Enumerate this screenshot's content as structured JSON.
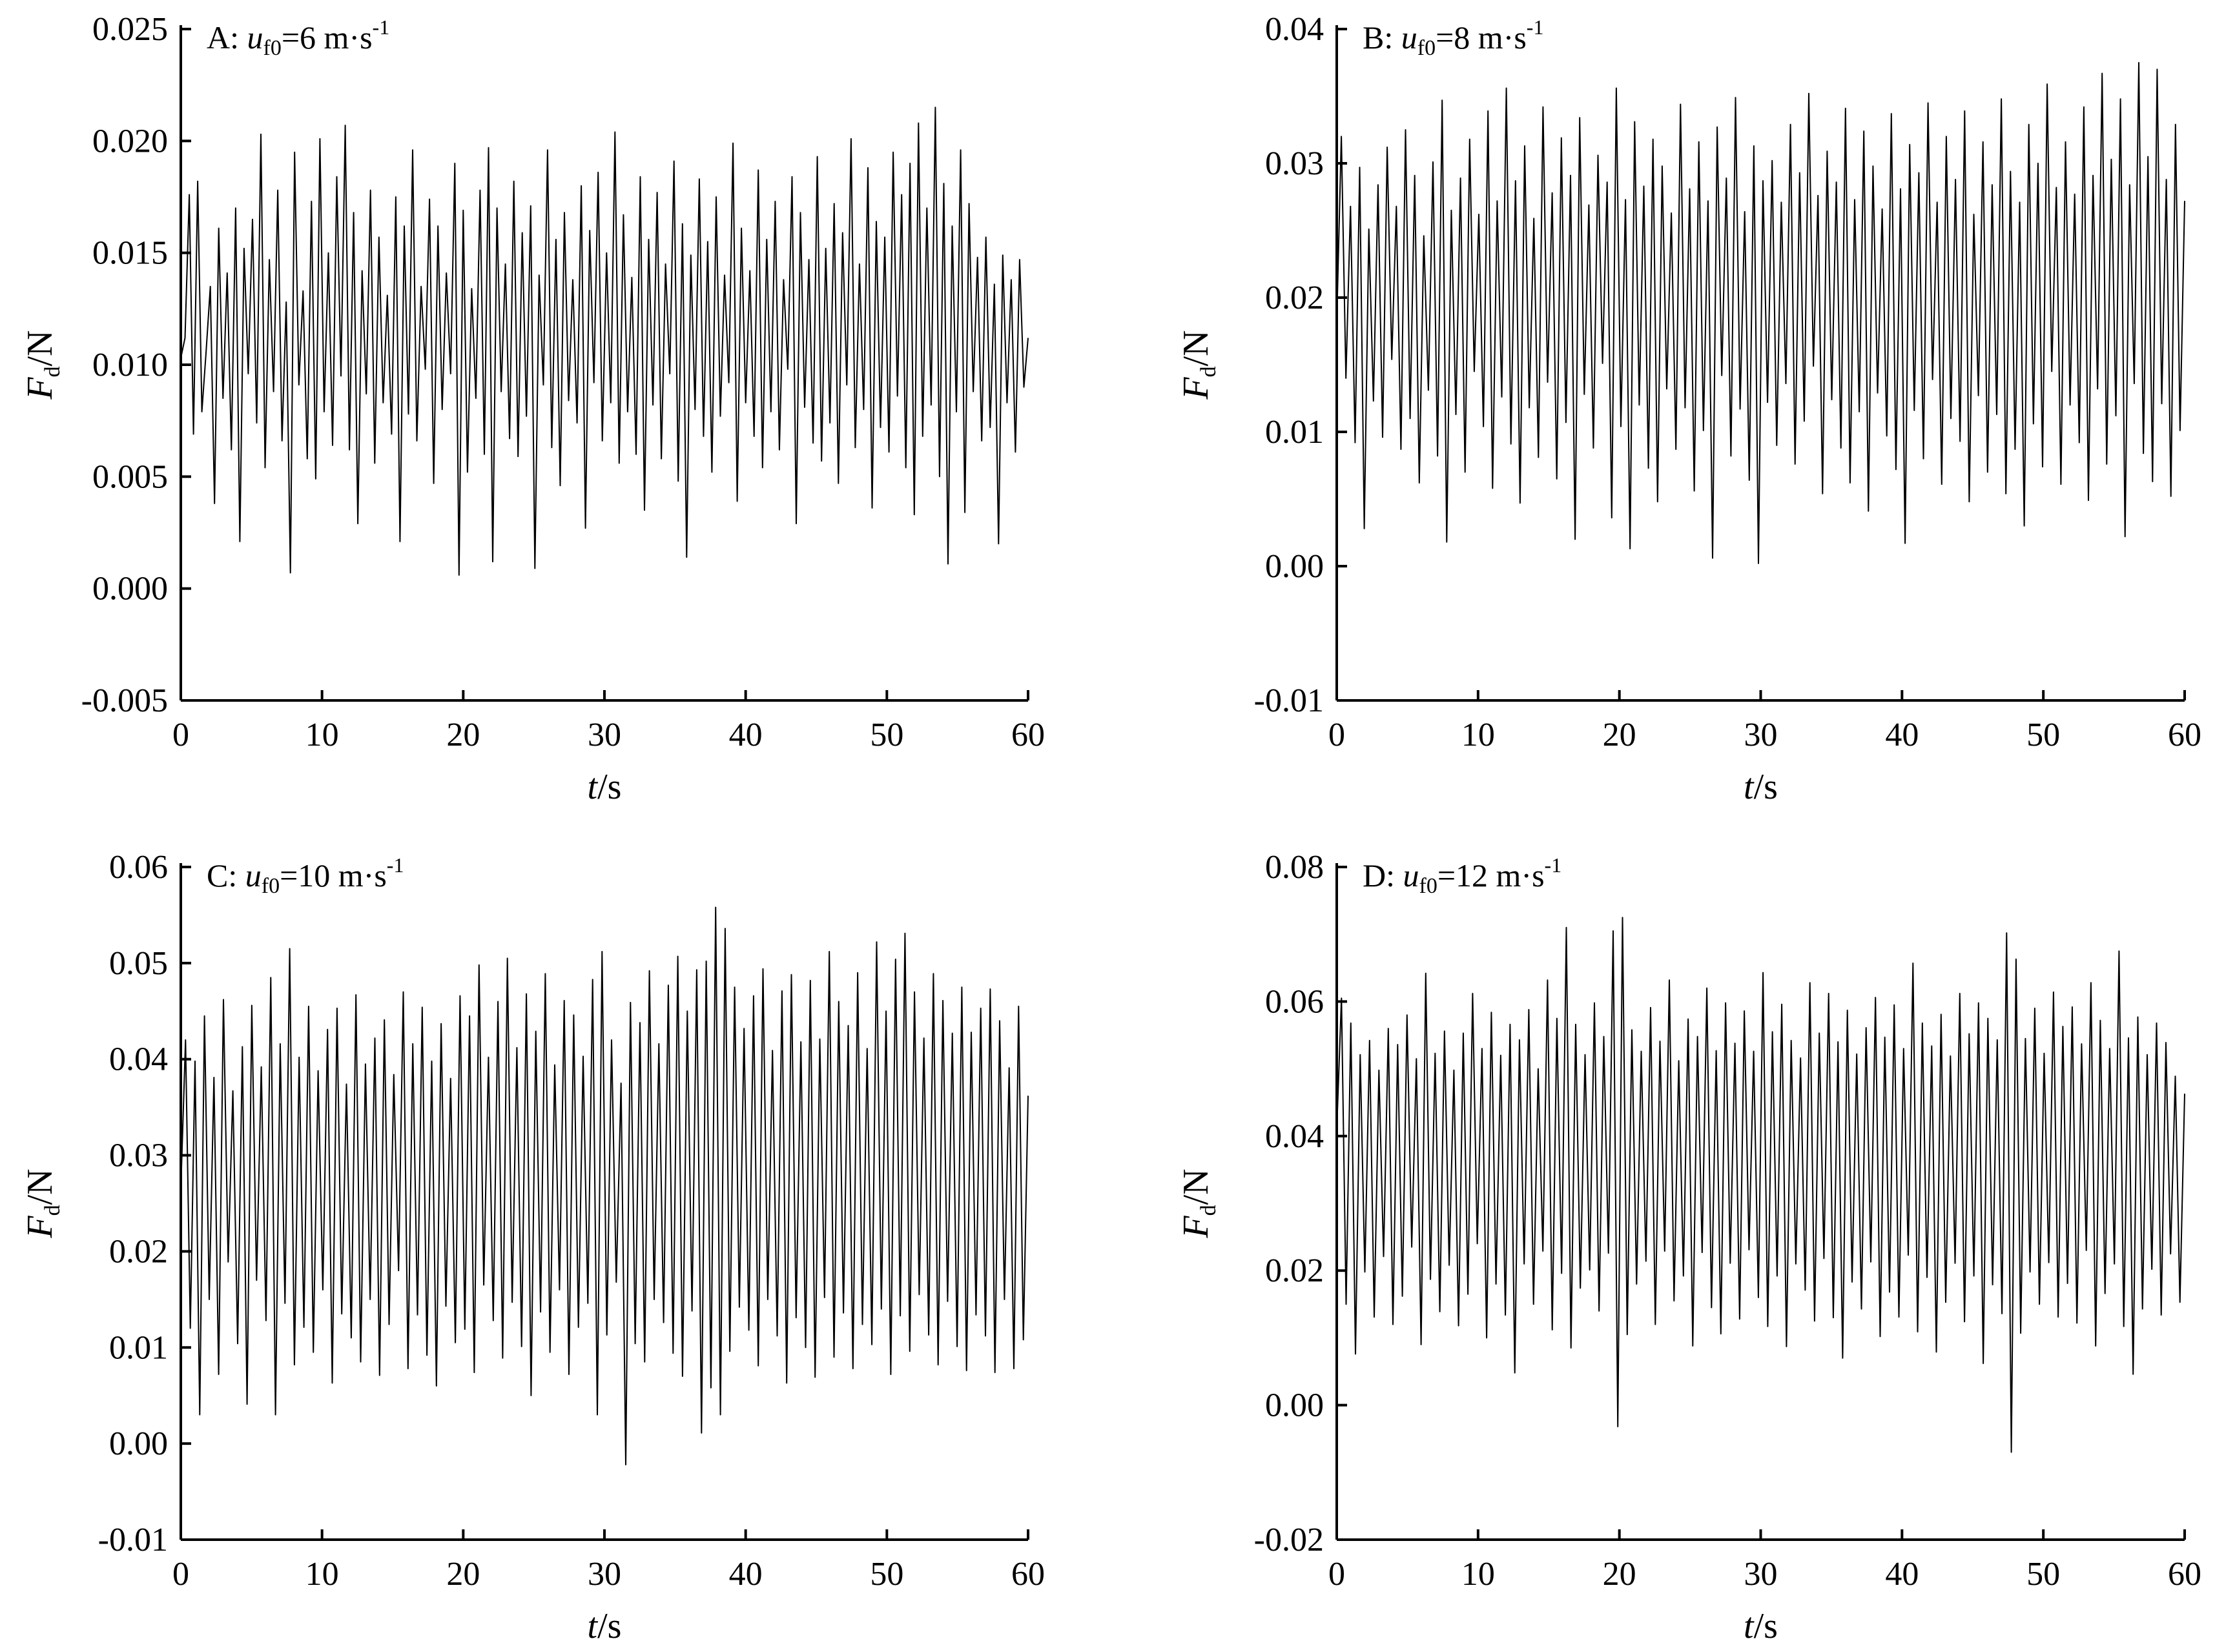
{
  "chart_data": [
    {
      "type": "line",
      "panel_letter": "A",
      "panel_prefix": "A: ",
      "velocity_symbol": "u",
      "velocity_subscript": "f0",
      "velocity_value": "=6 m·s",
      "velocity_exponent": "-1",
      "x_label": {
        "var": "t",
        "unit": "/s"
      },
      "y_label": {
        "var": "F",
        "sub": "d",
        "unit": "/N"
      },
      "xlim": [
        0,
        60
      ],
      "ylim": [
        -0.005,
        0.025
      ],
      "xticks": [
        0,
        10,
        20,
        30,
        40,
        50,
        60
      ],
      "xtick_labels": [
        "0",
        "10",
        "20",
        "30",
        "40",
        "50",
        "60"
      ],
      "yticks": [
        -0.005,
        0.0,
        0.005,
        0.01,
        0.015,
        0.02,
        0.025
      ],
      "ytick_labels": [
        "-0.005",
        "0.000",
        "0.005",
        "0.010",
        "0.015",
        "0.020",
        "0.025"
      ],
      "grid": false,
      "series": [
        {
          "x_start": 0,
          "x_end": 60,
          "values": [
            0.0103,
            0.0112,
            0.0176,
            0.0069,
            0.0182,
            0.0079,
            0.0106,
            0.0135,
            0.0038,
            0.0161,
            0.0085,
            0.0141,
            0.0062,
            0.017,
            0.0021,
            0.0152,
            0.0096,
            0.0165,
            0.0074,
            0.0203,
            0.0054,
            0.0147,
            0.0088,
            0.0178,
            0.0066,
            0.0128,
            0.0007,
            0.0195,
            0.0091,
            0.0133,
            0.0058,
            0.0173,
            0.0049,
            0.0201,
            0.0079,
            0.015,
            0.0064,
            0.0184,
            0.0095,
            0.0207,
            0.0062,
            0.0168,
            0.0029,
            0.0142,
            0.0087,
            0.0178,
            0.0056,
            0.0157,
            0.0083,
            0.0131,
            0.0069,
            0.0175,
            0.0021,
            0.0162,
            0.0078,
            0.0196,
            0.0066,
            0.0135,
            0.0098,
            0.0174,
            0.0047,
            0.0162,
            0.008,
            0.0141,
            0.0096,
            0.019,
            0.0006,
            0.0169,
            0.0052,
            0.0134,
            0.0085,
            0.0178,
            0.006,
            0.0197,
            0.0012,
            0.017,
            0.0088,
            0.0145,
            0.0067,
            0.0182,
            0.0059,
            0.0159,
            0.0077,
            0.0171,
            0.0009,
            0.014,
            0.0091,
            0.0196,
            0.0063,
            0.0156,
            0.0046,
            0.0168,
            0.0084,
            0.0138,
            0.0074,
            0.018,
            0.0027,
            0.016,
            0.0092,
            0.0186,
            0.0066,
            0.015,
            0.0083,
            0.0204,
            0.0056,
            0.0167,
            0.0079,
            0.0139,
            0.006,
            0.0184,
            0.0035,
            0.0156,
            0.0082,
            0.0177,
            0.0058,
            0.0145,
            0.0096,
            0.0191,
            0.0048,
            0.0163,
            0.0014,
            0.0149,
            0.008,
            0.0183,
            0.0068,
            0.0155,
            0.0052,
            0.0175,
            0.0077,
            0.014,
            0.0092,
            0.0199,
            0.0039,
            0.0161,
            0.0083,
            0.0142,
            0.0068,
            0.0187,
            0.0054,
            0.0156,
            0.0079,
            0.0173,
            0.0062,
            0.0138,
            0.0098,
            0.0184,
            0.0029,
            0.0168,
            0.0081,
            0.0147,
            0.0065,
            0.0193,
            0.0057,
            0.0152,
            0.0074,
            0.0172,
            0.0047,
            0.0159,
            0.0091,
            0.0201,
            0.0063,
            0.0145,
            0.008,
            0.0188,
            0.0036,
            0.0164,
            0.0072,
            0.0157,
            0.0061,
            0.0195,
            0.0086,
            0.0176,
            0.0054,
            0.019,
            0.0033,
            0.0208,
            0.0068,
            0.017,
            0.0082,
            0.0215,
            0.005,
            0.0181,
            0.0011,
            0.0162,
            0.0079,
            0.0196,
            0.0034,
            0.0172,
            0.0088,
            0.0148,
            0.0066,
            0.0157,
            0.0072,
            0.0136,
            0.002,
            0.0149,
            0.0083,
            0.0138,
            0.0061,
            0.0147,
            0.009,
            0.0112
          ]
        }
      ]
    },
    {
      "type": "line",
      "panel_letter": "B",
      "panel_prefix": "B: ",
      "velocity_symbol": "u",
      "velocity_subscript": "f0",
      "velocity_value": "=8 m·s",
      "velocity_exponent": "-1",
      "x_label": {
        "var": "t",
        "unit": "/s"
      },
      "y_label": {
        "var": "F",
        "sub": "d",
        "unit": "/N"
      },
      "xlim": [
        0,
        60
      ],
      "ylim": [
        -0.01,
        0.04
      ],
      "xticks": [
        0,
        10,
        20,
        30,
        40,
        50,
        60
      ],
      "xtick_labels": [
        "0",
        "10",
        "20",
        "30",
        "40",
        "50",
        "60"
      ],
      "yticks": [
        -0.01,
        0.0,
        0.01,
        0.02,
        0.03,
        0.04
      ],
      "ytick_labels": [
        "-0.01",
        "0.00",
        "0.01",
        "0.02",
        "0.03",
        "0.04"
      ],
      "grid": false,
      "series": [
        {
          "x_start": 0,
          "x_end": 60,
          "values": [
            0.0182,
            0.032,
            0.014,
            0.0268,
            0.0092,
            0.0297,
            0.0028,
            0.0251,
            0.0123,
            0.0284,
            0.0096,
            0.0312,
            0.0154,
            0.0268,
            0.0087,
            0.0325,
            0.011,
            0.0291,
            0.0062,
            0.0246,
            0.0131,
            0.0301,
            0.0082,
            0.0347,
            0.0018,
            0.0265,
            0.0113,
            0.0289,
            0.007,
            0.0318,
            0.0145,
            0.0262,
            0.0104,
            0.0339,
            0.0058,
            0.0272,
            0.0126,
            0.0356,
            0.0091,
            0.0287,
            0.0047,
            0.0313,
            0.0118,
            0.0259,
            0.0081,
            0.0342,
            0.0137,
            0.0278,
            0.0065,
            0.0319,
            0.0107,
            0.0291,
            0.002,
            0.0334,
            0.0128,
            0.0269,
            0.0088,
            0.0306,
            0.0151,
            0.0286,
            0.0036,
            0.0356,
            0.0104,
            0.0273,
            0.0013,
            0.0331,
            0.012,
            0.0283,
            0.0073,
            0.0318,
            0.0048,
            0.0298,
            0.0132,
            0.0263,
            0.0087,
            0.0344,
            0.0118,
            0.0281,
            0.0056,
            0.0316,
            0.0101,
            0.0272,
            0.0006,
            0.0327,
            0.0142,
            0.0289,
            0.0082,
            0.0349,
            0.0117,
            0.0264,
            0.0064,
            0.0313,
            0.0002,
            0.0287,
            0.0122,
            0.0302,
            0.009,
            0.0271,
            0.0136,
            0.0329,
            0.0076,
            0.0293,
            0.0108,
            0.0352,
            0.0149,
            0.0276,
            0.0054,
            0.0309,
            0.0124,
            0.0286,
            0.0088,
            0.0341,
            0.0062,
            0.0273,
            0.0115,
            0.0324,
            0.0041,
            0.0298,
            0.0129,
            0.0266,
            0.0097,
            0.0337,
            0.0072,
            0.0281,
            0.0017,
            0.0314,
            0.0116,
            0.0293,
            0.008,
            0.0345,
            0.0139,
            0.0271,
            0.0061,
            0.032,
            0.011,
            0.0288,
            0.0093,
            0.0339,
            0.0048,
            0.0262,
            0.0127,
            0.0316,
            0.007,
            0.0284,
            0.0113,
            0.0348,
            0.0054,
            0.0294,
            0.0087,
            0.0271,
            0.003,
            0.0329,
            0.0106,
            0.03,
            0.0074,
            0.0359,
            0.0145,
            0.0282,
            0.0061,
            0.0316,
            0.012,
            0.0277,
            0.0092,
            0.0342,
            0.0049,
            0.0291,
            0.0132,
            0.0367,
            0.0076,
            0.0303,
            0.0112,
            0.0348,
            0.0022,
            0.0284,
            0.0136,
            0.0375,
            0.0084,
            0.0305,
            0.0063,
            0.037,
            0.0121,
            0.0288,
            0.0052,
            0.0329,
            0.0101,
            0.0272
          ]
        }
      ]
    },
    {
      "type": "line",
      "panel_letter": "C",
      "panel_prefix": "C: ",
      "velocity_symbol": "u",
      "velocity_subscript": "f0",
      "velocity_value": "=10 m·s",
      "velocity_exponent": "-1",
      "x_label": {
        "var": "t",
        "unit": "/s"
      },
      "y_label": {
        "var": "F",
        "sub": "d",
        "unit": "/N"
      },
      "xlim": [
        0,
        60
      ],
      "ylim": [
        -0.01,
        0.06
      ],
      "xticks": [
        0,
        10,
        20,
        30,
        40,
        50,
        60
      ],
      "xtick_labels": [
        "0",
        "10",
        "20",
        "30",
        "40",
        "50",
        "60"
      ],
      "yticks": [
        -0.01,
        0.0,
        0.01,
        0.02,
        0.03,
        0.04,
        0.05,
        0.06
      ],
      "ytick_labels": [
        "-0.01",
        "0.00",
        "0.01",
        "0.02",
        "0.03",
        "0.04",
        "0.05",
        "0.06"
      ],
      "grid": false,
      "series": [
        {
          "x_start": 0,
          "x_end": 60,
          "values": [
            0.0265,
            0.042,
            0.012,
            0.0398,
            0.003,
            0.0445,
            0.015,
            0.0381,
            0.0072,
            0.0462,
            0.0189,
            0.0367,
            0.0104,
            0.0413,
            0.0041,
            0.0456,
            0.017,
            0.0392,
            0.0128,
            0.0485,
            0.003,
            0.0416,
            0.0146,
            0.0515,
            0.0082,
            0.0402,
            0.0121,
            0.0455,
            0.0095,
            0.0388,
            0.016,
            0.0431,
            0.0063,
            0.0453,
            0.0135,
            0.0374,
            0.011,
            0.0467,
            0.0085,
            0.0395,
            0.015,
            0.0422,
            0.0071,
            0.0441,
            0.0124,
            0.0384,
            0.018,
            0.047,
            0.0078,
            0.0416,
            0.0134,
            0.0454,
            0.0092,
            0.0398,
            0.006,
            0.0437,
            0.0143,
            0.038,
            0.0105,
            0.0466,
            0.0119,
            0.0445,
            0.0074,
            0.0498,
            0.0165,
            0.0402,
            0.0128,
            0.046,
            0.0089,
            0.0505,
            0.0147,
            0.0412,
            0.0101,
            0.0468,
            0.005,
            0.0429,
            0.0137,
            0.0489,
            0.0095,
            0.0394,
            0.016,
            0.0461,
            0.0072,
            0.0446,
            0.0121,
            0.0403,
            0.0146,
            0.0483,
            0.003,
            0.0512,
            0.0113,
            0.042,
            0.0168,
            0.0375,
            -0.0022,
            0.0459,
            0.0104,
            0.0438,
            0.0085,
            0.0492,
            0.015,
            0.0416,
            0.0126,
            0.0477,
            0.0094,
            0.0507,
            0.007,
            0.045,
            0.0138,
            0.0493,
            0.0011,
            0.0502,
            0.0058,
            0.0558,
            0.003,
            0.0536,
            0.0096,
            0.0475,
            0.0142,
            0.0432,
            0.0118,
            0.0466,
            0.0081,
            0.0494,
            0.015,
            0.0409,
            0.0112,
            0.0471,
            0.0063,
            0.0488,
            0.0131,
            0.0418,
            0.01,
            0.0482,
            0.0069,
            0.0421,
            0.0152,
            0.0512,
            0.009,
            0.046,
            0.0136,
            0.0435,
            0.0078,
            0.049,
            0.0124,
            0.0411,
            0.0103,
            0.0522,
            0.014,
            0.045,
            0.0072,
            0.0504,
            0.0133,
            0.0531,
            0.0096,
            0.047,
            0.0155,
            0.0422,
            0.0113,
            0.0489,
            0.0082,
            0.0461,
            0.0148,
            0.0427,
            0.0101,
            0.0475,
            0.0076,
            0.0428,
            0.0134,
            0.0453,
            0.0112,
            0.0473,
            0.0074,
            0.044,
            0.015,
            0.0391,
            0.0078,
            0.0455,
            0.0108,
            0.0362
          ]
        }
      ]
    },
    {
      "type": "line",
      "panel_letter": "D",
      "panel_prefix": "D: ",
      "velocity_symbol": "u",
      "velocity_subscript": "f0",
      "velocity_value": "=12 m·s",
      "velocity_exponent": "-1",
      "x_label": {
        "var": "t",
        "unit": "/s"
      },
      "y_label": {
        "var": "F",
        "sub": "d",
        "unit": "/N"
      },
      "xlim": [
        0,
        60
      ],
      "ylim": [
        -0.02,
        0.08
      ],
      "xticks": [
        0,
        10,
        20,
        30,
        40,
        50,
        60
      ],
      "xtick_labels": [
        "0",
        "10",
        "20",
        "30",
        "40",
        "50",
        "60"
      ],
      "yticks": [
        -0.02,
        0.0,
        0.02,
        0.04,
        0.06,
        0.08
      ],
      "ytick_labels": [
        "-0.02",
        "0.00",
        "0.02",
        "0.04",
        "0.06",
        "0.08"
      ],
      "grid": false,
      "series": [
        {
          "x_start": 0,
          "x_end": 60,
          "values": [
            0.041,
            0.0605,
            0.015,
            0.0568,
            0.0076,
            0.0521,
            0.0198,
            0.0542,
            0.0131,
            0.0498,
            0.0221,
            0.056,
            0.012,
            0.0536,
            0.0162,
            0.058,
            0.0235,
            0.0515,
            0.009,
            0.0642,
            0.0187,
            0.0523,
            0.0139,
            0.0556,
            0.0208,
            0.0498,
            0.0118,
            0.0553,
            0.0165,
            0.0612,
            0.024,
            0.053,
            0.01,
            0.0584,
            0.018,
            0.052,
            0.0134,
            0.0566,
            0.0048,
            0.0543,
            0.021,
            0.0588,
            0.015,
            0.05,
            0.0229,
            0.0632,
            0.0112,
            0.0575,
            0.0196,
            0.071,
            0.0085,
            0.0566,
            0.0174,
            0.0521,
            0.0201,
            0.0598,
            0.014,
            0.0548,
            0.0226,
            0.0705,
            -0.0032,
            0.0725,
            0.0105,
            0.0558,
            0.018,
            0.0526,
            0.0214,
            0.0591,
            0.012,
            0.0541,
            0.0229,
            0.0632,
            0.0155,
            0.0512,
            0.0192,
            0.0574,
            0.0088,
            0.0548,
            0.0227,
            0.062,
            0.0145,
            0.0527,
            0.0106,
            0.0598,
            0.0211,
            0.0538,
            0.0128,
            0.0586,
            0.0231,
            0.0526,
            0.016,
            0.0643,
            0.0117,
            0.0555,
            0.0192,
            0.0596,
            0.0087,
            0.0542,
            0.021,
            0.0516,
            0.0171,
            0.0628,
            0.0125,
            0.0553,
            0.0218,
            0.0612,
            0.013,
            0.054,
            0.007,
            0.0587,
            0.0183,
            0.0522,
            0.0143,
            0.0561,
            0.0213,
            0.0606,
            0.0102,
            0.0547,
            0.0168,
            0.0595,
            0.0131,
            0.053,
            0.0223,
            0.0657,
            0.0109,
            0.0568,
            0.019,
            0.0534,
            0.0079,
            0.0581,
            0.0153,
            0.0519,
            0.0211,
            0.0612,
            0.0124,
            0.0552,
            0.0192,
            0.0598,
            0.0062,
            0.0575,
            0.0179,
            0.0543,
            0.0136,
            0.0702,
            -0.007,
            0.0663,
            0.0107,
            0.0545,
            0.0198,
            0.059,
            0.015,
            0.0523,
            0.0212,
            0.0614,
            0.0131,
            0.0563,
            0.0181,
            0.0592,
            0.0122,
            0.0537,
            0.023,
            0.0628,
            0.0088,
            0.0572,
            0.0166,
            0.053,
            0.021,
            0.0675,
            0.0117,
            0.0546,
            0.0046,
            0.0577,
            0.0143,
            0.0521,
            0.0202,
            0.0568,
            0.0134,
            0.0539,
            0.0225,
            0.0489,
            0.0153,
            0.0463
          ]
        }
      ]
    }
  ]
}
